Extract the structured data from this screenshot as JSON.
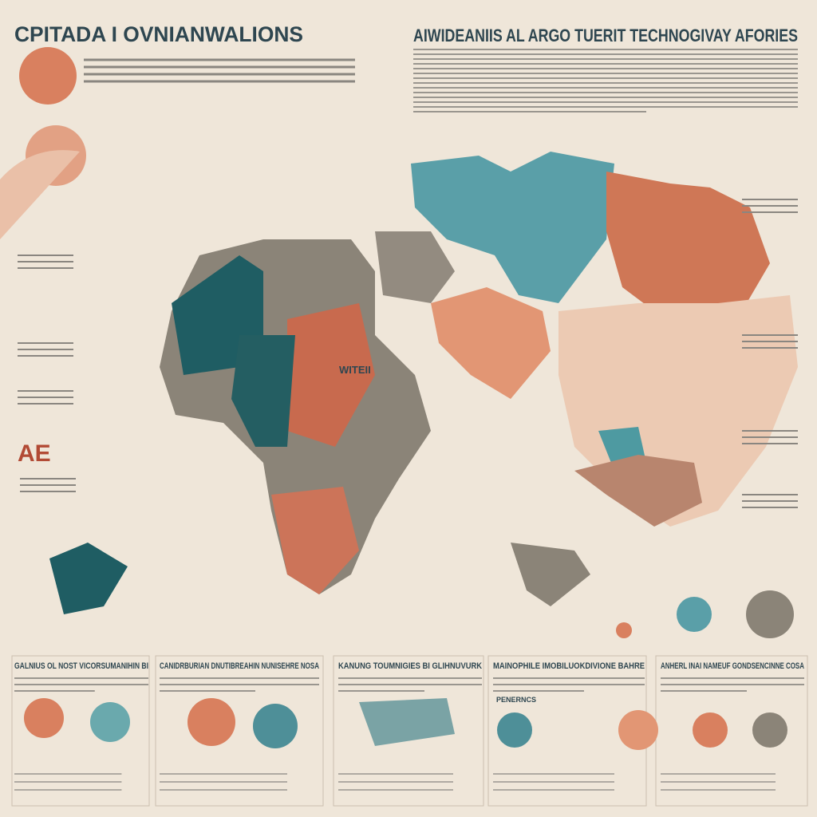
{
  "header": {
    "title": "CPITADA I OVNIANWALIONS",
    "subtitle": "AIWIDEANIIS AL ARGO TUERIT TECHNOGIVAY AFORIES"
  },
  "panels": [
    {
      "title": "GALNIUS OL NOST VICORSUMANIHIN BI"
    },
    {
      "title": "CANIDRBURIAN DNUTIBREAHIN NUNISEHRE NOSA"
    },
    {
      "title": "KANUNG TOUMNIGIES BI GLIHNUVURK"
    },
    {
      "title": "MAINOPHILE IMOBILUOKDIVIONE BAHRE"
    },
    {
      "title": "ANHERL INAI NAMEUF GONDSENCINNE COSA"
    }
  ],
  "map_labels": {
    "center": "WITEII",
    "left": "AE",
    "panel_tag": "PENERNCS"
  }
}
